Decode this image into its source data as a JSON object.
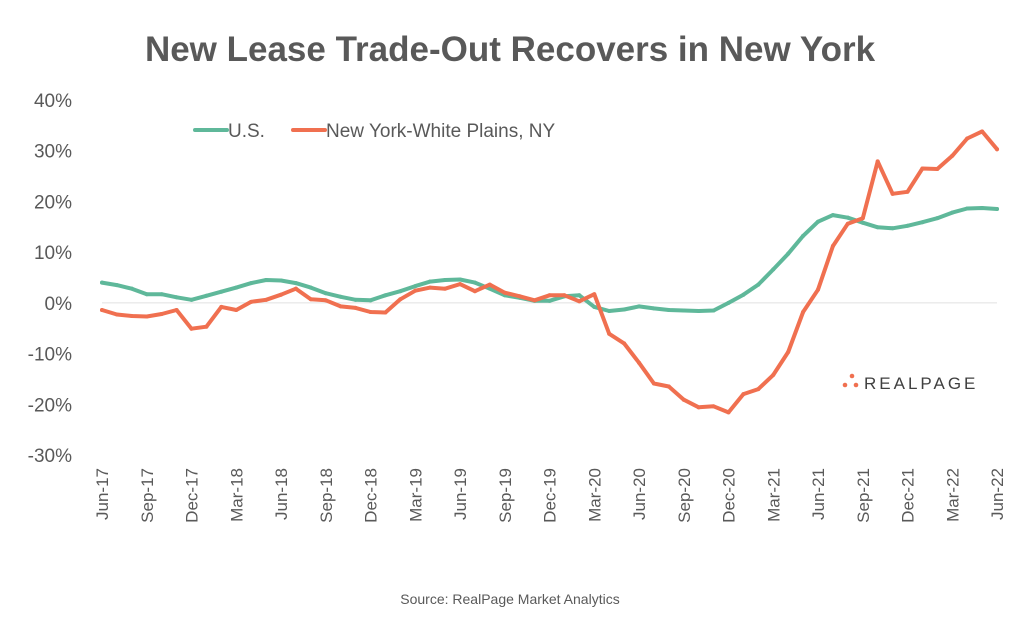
{
  "chart_data": {
    "type": "line",
    "title": "New Lease Trade-Out Recovers in New York",
    "source": "Source: RealPage Market Analytics",
    "logo": "REALPAGE",
    "ylim": [
      -30,
      40
    ],
    "yticks": [
      40,
      30,
      20,
      10,
      0,
      -10,
      -20,
      -30
    ],
    "ytick_labels": [
      "40%",
      "30%",
      "20%",
      "10%",
      "0%",
      "-10%",
      "-20%",
      "-30%"
    ],
    "x_tick_labels": [
      "Jun-17",
      "Sep-17",
      "Dec-17",
      "Mar-18",
      "Jun-18",
      "Sep-18",
      "Dec-18",
      "Mar-19",
      "Jun-19",
      "Sep-19",
      "Dec-19",
      "Mar-20",
      "Jun-20",
      "Sep-20",
      "Dec-20",
      "Mar-21",
      "Jun-21",
      "Sep-21",
      "Dec-21",
      "Mar-22",
      "Jun-22"
    ],
    "x_count": 61,
    "grid": "zero-line only",
    "legend_position": "top-left",
    "series": [
      {
        "name": "U.S.",
        "color": "#5fb89a",
        "values": [
          4.0,
          3.5,
          2.8,
          1.7,
          1.7,
          1.1,
          0.6,
          1.4,
          2.2,
          3.0,
          3.9,
          4.5,
          4.4,
          3.9,
          3.0,
          1.9,
          1.2,
          0.6,
          0.5,
          1.5,
          2.3,
          3.3,
          4.2,
          4.5,
          4.6,
          4.0,
          2.8,
          1.5,
          1.0,
          0.4,
          0.4,
          1.3,
          1.5,
          -0.8,
          -1.6,
          -1.3,
          -0.7,
          -1.1,
          -1.4,
          -1.5,
          -1.6,
          -1.5,
          0.0,
          1.6,
          3.6,
          6.6,
          9.7,
          13.2,
          16.0,
          17.3,
          16.8,
          15.8,
          14.9,
          14.7,
          15.2,
          15.9,
          16.7,
          17.8,
          18.6,
          18.7,
          18.5
        ]
      },
      {
        "name": "New York-White Plains, NY",
        "color": "#f07050",
        "values": [
          -1.4,
          -2.3,
          -2.6,
          -2.7,
          -2.2,
          -1.4,
          -5.1,
          -4.7,
          -0.8,
          -1.4,
          0.2,
          0.6,
          1.6,
          2.8,
          0.7,
          0.5,
          -0.7,
          -1.0,
          -1.8,
          -1.9,
          0.7,
          2.4,
          3.0,
          2.8,
          3.7,
          2.3,
          3.6,
          2.0,
          1.3,
          0.5,
          1.5,
          1.5,
          0.3,
          1.7,
          -6.1,
          -8.0,
          -11.8,
          -15.9,
          -16.5,
          -19.1,
          -20.6,
          -20.4,
          -21.6,
          -18.0,
          -17.0,
          -14.2,
          -9.7,
          -1.8,
          2.6,
          11.2,
          15.6,
          16.7,
          27.9,
          21.5,
          21.9,
          26.5,
          26.4,
          29.0,
          32.4,
          33.8,
          30.3
        ]
      }
    ]
  }
}
